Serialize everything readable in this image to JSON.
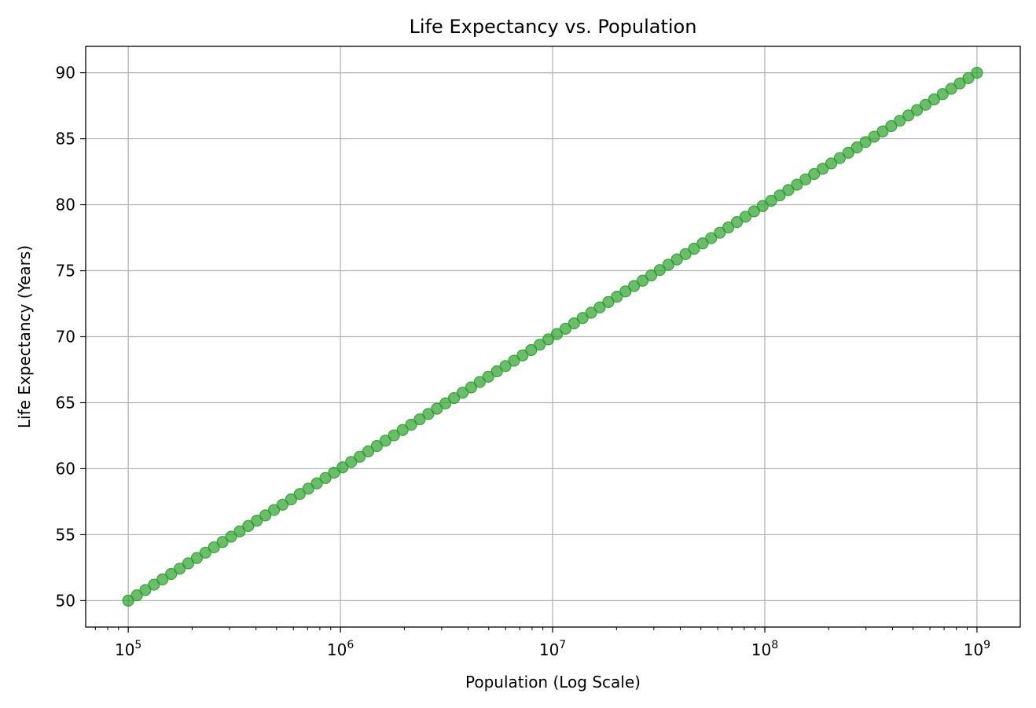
{
  "chart_data": {
    "type": "scatter",
    "title": "Life Expectancy vs. Population",
    "xlabel": "Population (Log Scale)",
    "ylabel": "Life Expectancy (Years)",
    "x_scale": "log",
    "xlim": [
      63000,
      1600000000
    ],
    "ylim": [
      48,
      92
    ],
    "x_ticks": [
      {
        "value": 100000,
        "base": "10",
        "exp": "5"
      },
      {
        "value": 1000000,
        "base": "10",
        "exp": "6"
      },
      {
        "value": 10000000,
        "base": "10",
        "exp": "7"
      },
      {
        "value": 100000000,
        "base": "10",
        "exp": "8"
      },
      {
        "value": 1000000000,
        "base": "10",
        "exp": "9"
      }
    ],
    "y_ticks": [
      50,
      55,
      60,
      65,
      70,
      75,
      80,
      85,
      90
    ],
    "grid": true,
    "marker_color": "#2ca02c",
    "series": [
      {
        "points": {
          "count": 100,
          "x_start": 100000,
          "x_end": 1000000000,
          "y_start": 50,
          "y_end": 90,
          "spacing": "log-uniform"
        }
      }
    ]
  }
}
